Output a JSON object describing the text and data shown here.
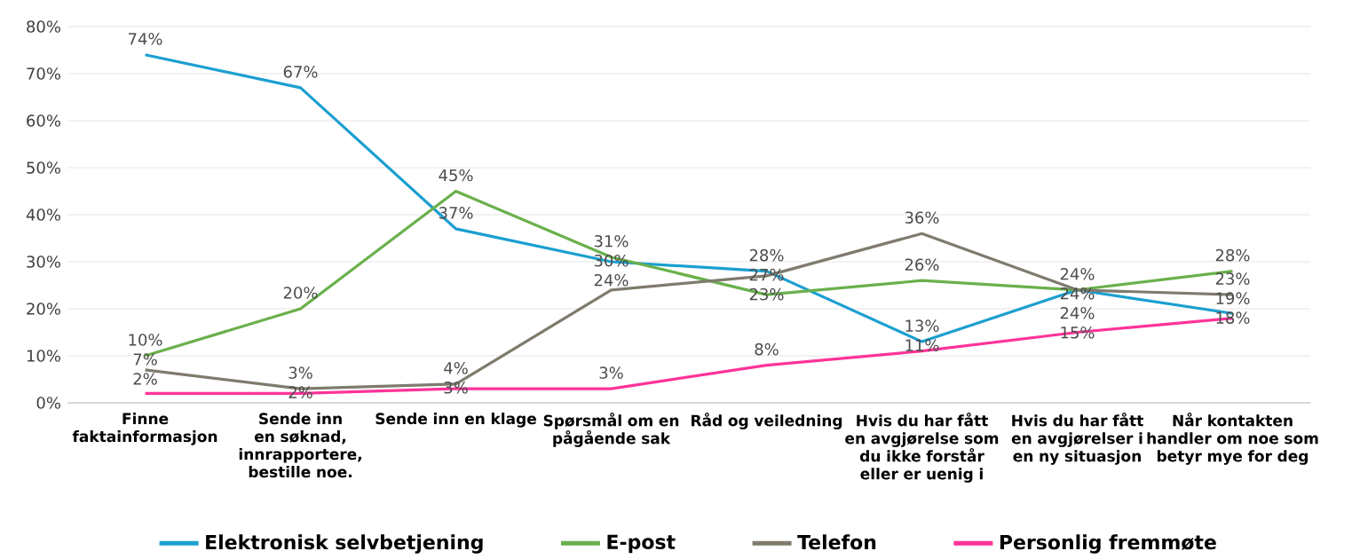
{
  "chart_data": {
    "type": "line",
    "categories": [
      "Finne faktainformasjon",
      "Sende inn en søknad, innrapportere, bestille noe.",
      "Sende inn en klage",
      "Spørsmål om en pågående sak",
      "Råd og veiledning",
      "Hvis du har fått en avgjørelse som du ikke forstår eller er uenig i",
      "Hvis du har fått en avgjørelser i en ny situasjon",
      "Når kontakten handler om noe som betyr mye for deg"
    ],
    "series": [
      {
        "name": "Elektronisk selvbetjening",
        "color": "#1b9fd0",
        "values": [
          74,
          67,
          37,
          30,
          28,
          13,
          24,
          19
        ],
        "value_labels": [
          "74%",
          "67%",
          "37%",
          "30%",
          "28%",
          "13%",
          "24%",
          "19%"
        ]
      },
      {
        "name": "E-post",
        "color": "#6ab04c",
        "values": [
          10,
          20,
          45,
          31,
          23,
          26,
          24,
          28
        ],
        "value_labels": [
          "10%",
          "20%",
          "45%",
          "31%",
          "23%",
          "26%",
          "24%",
          "28%"
        ]
      },
      {
        "name": "Telefon",
        "color": "#7f7b6d",
        "values": [
          7,
          3,
          4,
          24,
          27,
          36,
          24,
          23
        ],
        "value_labels": [
          "7%",
          "3%",
          "4%",
          "24%",
          "27%",
          "36%",
          "24%",
          "23%"
        ]
      },
      {
        "name": "Personlig fremmøte",
        "color": "#ff3399",
        "values": [
          2,
          2,
          3,
          3,
          8,
          11,
          15,
          18
        ],
        "value_labels": [
          "2%",
          "2%",
          "3%",
          "3%",
          "8%",
          "11%",
          "15%",
          "18%"
        ]
      }
    ],
    "ylim": [
      0,
      80
    ],
    "yticks": [
      {
        "value": 0,
        "label": "0%"
      },
      {
        "value": 10,
        "label": "10%"
      },
      {
        "value": 20,
        "label": "20%"
      },
      {
        "value": 30,
        "label": "30%"
      },
      {
        "value": 40,
        "label": "40%"
      },
      {
        "value": 50,
        "label": "50%"
      },
      {
        "value": 60,
        "label": "60%"
      },
      {
        "value": 70,
        "label": "70%"
      },
      {
        "value": 80,
        "label": "80%"
      }
    ],
    "grid": "y",
    "legend": "bottom",
    "marker": "none",
    "line_style": "solid"
  }
}
